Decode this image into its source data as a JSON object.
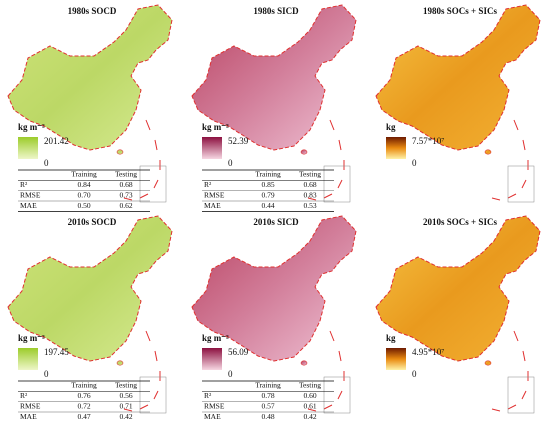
{
  "panels": [
    {
      "title": "1980s SOCD",
      "unit": "kg m⁻²",
      "legend_max": "201.42",
      "legend_min": "0",
      "table": {
        "header": [
          "Training",
          "Testing"
        ],
        "rows": [
          [
            "R²",
            "0.84",
            "0.68"
          ],
          [
            "RMSE",
            "0.70",
            "0.73"
          ],
          [
            "MAE",
            "0.50",
            "0.62"
          ]
        ]
      }
    },
    {
      "title": "1980s SICD",
      "unit": "kg m⁻²",
      "legend_max": "52.39",
      "legend_min": "0",
      "table": {
        "header": [
          "Training",
          "Testing"
        ],
        "rows": [
          [
            "R²",
            "0.85",
            "0.68"
          ],
          [
            "RMSE",
            "0.79",
            "0.83"
          ],
          [
            "MAE",
            "0.44",
            "0.53"
          ]
        ]
      }
    },
    {
      "title": "1980s SOCs + SICs",
      "unit": "kg",
      "legend_max": "7.57*10⁷",
      "legend_min": "0"
    },
    {
      "title": "2010s SOCD",
      "unit": "kg m⁻²",
      "legend_max": "197.45",
      "legend_min": "0",
      "table": {
        "header": [
          "Training",
          "Testing"
        ],
        "rows": [
          [
            "R²",
            "0.76",
            "0.56"
          ],
          [
            "RMSE",
            "0.72",
            "0.71"
          ],
          [
            "MAE",
            "0.47",
            "0.42"
          ]
        ]
      }
    },
    {
      "title": "2010s SICD",
      "unit": "kg m⁻²",
      "legend_max": "56.09",
      "legend_min": "0",
      "table": {
        "header": [
          "Training",
          "Testing"
        ],
        "rows": [
          [
            "R²",
            "0.78",
            "0.60"
          ],
          [
            "RMSE",
            "0.57",
            "0.61"
          ],
          [
            "MAE",
            "0.48",
            "0.42"
          ]
        ]
      }
    },
    {
      "title": "2010s SOCs + SICs",
      "unit": "kg",
      "legend_max": "4.95*10⁷",
      "legend_min": "0"
    }
  ]
}
